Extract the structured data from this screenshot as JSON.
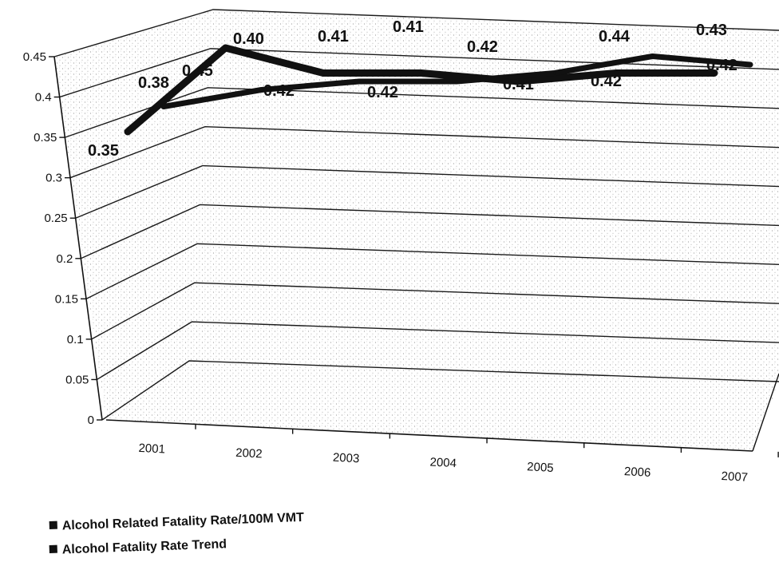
{
  "chart_data": {
    "type": "line",
    "view": "3d",
    "categories": [
      "2001",
      "2002",
      "2003",
      "2004",
      "2005",
      "2006",
      "2007"
    ],
    "series": [
      {
        "name": "Alcohol Related Fatality Rate/100M VMT",
        "values": [
          0.35,
          0.45,
          0.42,
          0.42,
          0.41,
          0.42,
          0.42
        ]
      },
      {
        "name": "Alcohol Fatality Rate Trend",
        "values": [
          0.38,
          0.4,
          0.41,
          0.41,
          0.42,
          0.44,
          0.43
        ]
      }
    ],
    "y_ticks": [
      "0",
      "0.05",
      "0.1",
      "0.15",
      "0.2",
      "0.25",
      "0.3",
      "0.35",
      "0.4",
      "0.45"
    ],
    "ylim": [
      0,
      0.45
    ],
    "grid": true,
    "legend_position": "bottom-left",
    "colors": {
      "line": "#111111",
      "grid": "#1a1a1a",
      "wall": "#ffffff"
    },
    "legend": {
      "items": [
        {
          "label": "Alcohol Related Fatality Rate/100M VMT",
          "marker": "square"
        },
        {
          "label": "Alcohol Fatality Rate Trend",
          "marker": "square"
        }
      ]
    }
  }
}
